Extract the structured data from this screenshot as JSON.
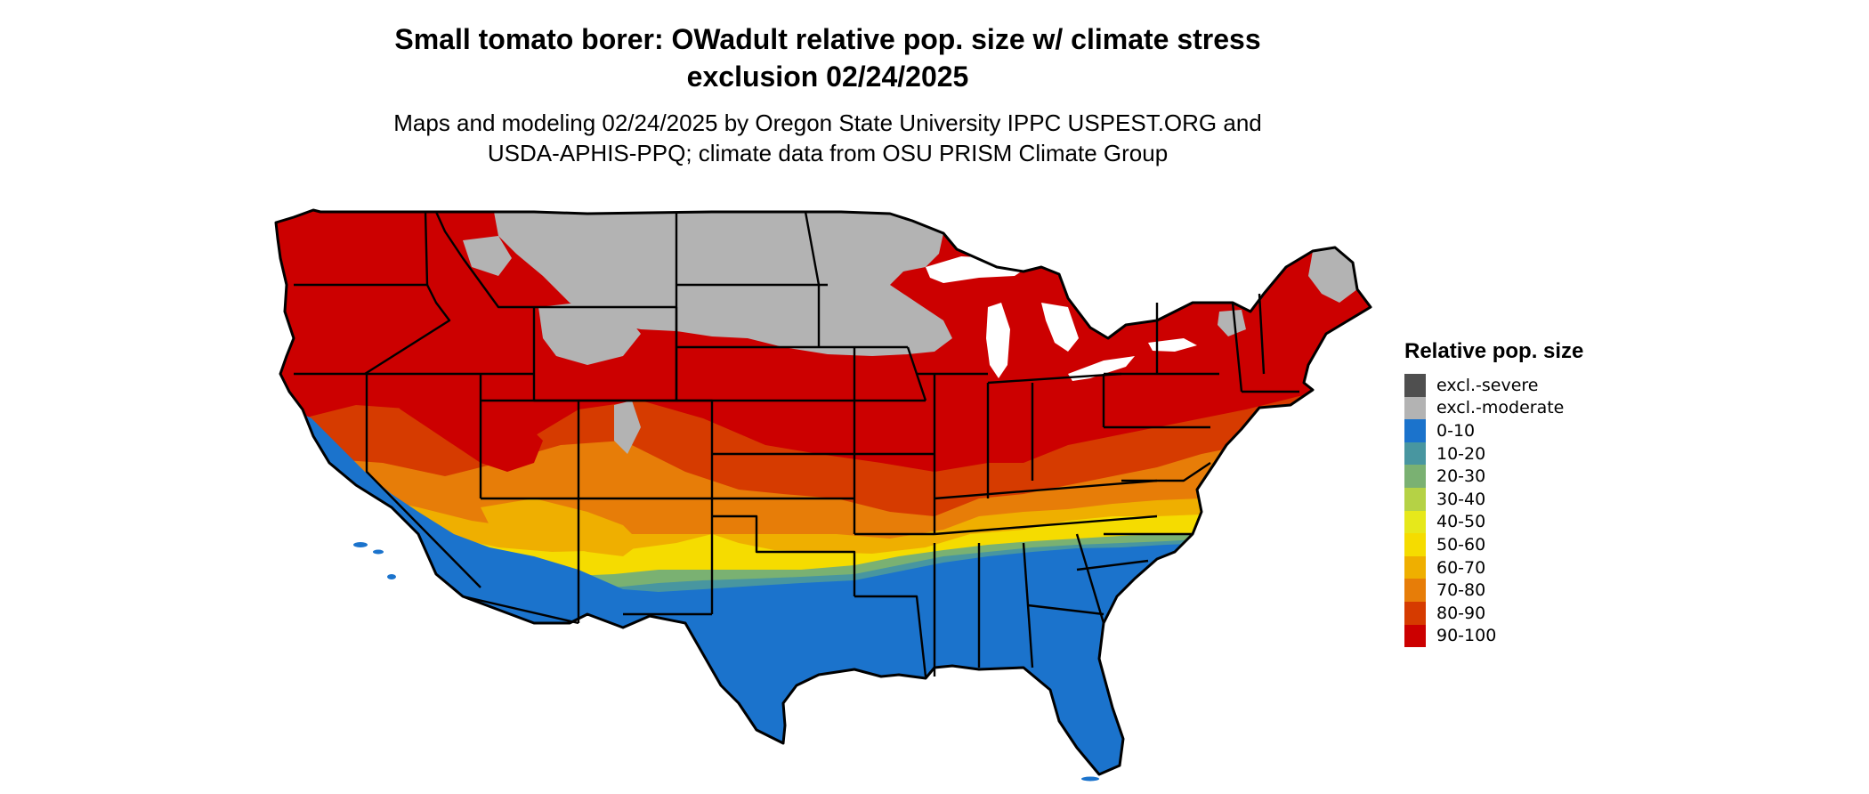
{
  "title": {
    "line1": "Small tomato borer: OWadult relative pop. size w/ climate stress",
    "line2": "exclusion 02/24/2025"
  },
  "subtitle": {
    "line1": "Maps and modeling 02/24/2025 by Oregon State University IPPC USPEST.ORG and",
    "line2": "USDA-APHIS-PPQ; climate data from OSU PRISM Climate Group"
  },
  "legend": {
    "title": "Relative pop. size",
    "items": [
      {
        "label": "excl.-severe",
        "color": "#4f4f4f"
      },
      {
        "label": "excl.-moderate",
        "color": "#b3b3b3"
      },
      {
        "label": "0-10",
        "color": "#1b73cc"
      },
      {
        "label": "10-20",
        "color": "#4896a0"
      },
      {
        "label": "20-30",
        "color": "#7ab172"
      },
      {
        "label": "30-40",
        "color": "#b5d245"
      },
      {
        "label": "40-50",
        "color": "#e6e81b"
      },
      {
        "label": "50-60",
        "color": "#f5dc00"
      },
      {
        "label": "60-70",
        "color": "#efaf00"
      },
      {
        "label": "70-80",
        "color": "#e77d08"
      },
      {
        "label": "80-90",
        "color": "#d63b00"
      },
      {
        "label": "90-100",
        "color": "#cc0000"
      }
    ]
  },
  "map": {
    "region": "Contiguous United States",
    "zones": [
      {
        "name": "northern-plains",
        "category": "excl.-moderate"
      },
      {
        "name": "upper-midwest",
        "category": "excl.-moderate"
      },
      {
        "name": "northern-maine",
        "category": "excl.-moderate"
      },
      {
        "name": "north-and-northeast",
        "category": "90-100"
      },
      {
        "name": "central-band",
        "category": "80-90"
      },
      {
        "name": "southwest-band",
        "category": "70-80"
      },
      {
        "name": "transition-band",
        "category": "60-70"
      },
      {
        "name": "yellow-band",
        "category": "50-60"
      },
      {
        "name": "green-band",
        "category": "20-30"
      },
      {
        "name": "teal-band",
        "category": "10-20"
      },
      {
        "name": "deep-south-and-coast",
        "category": "0-10"
      }
    ]
  }
}
